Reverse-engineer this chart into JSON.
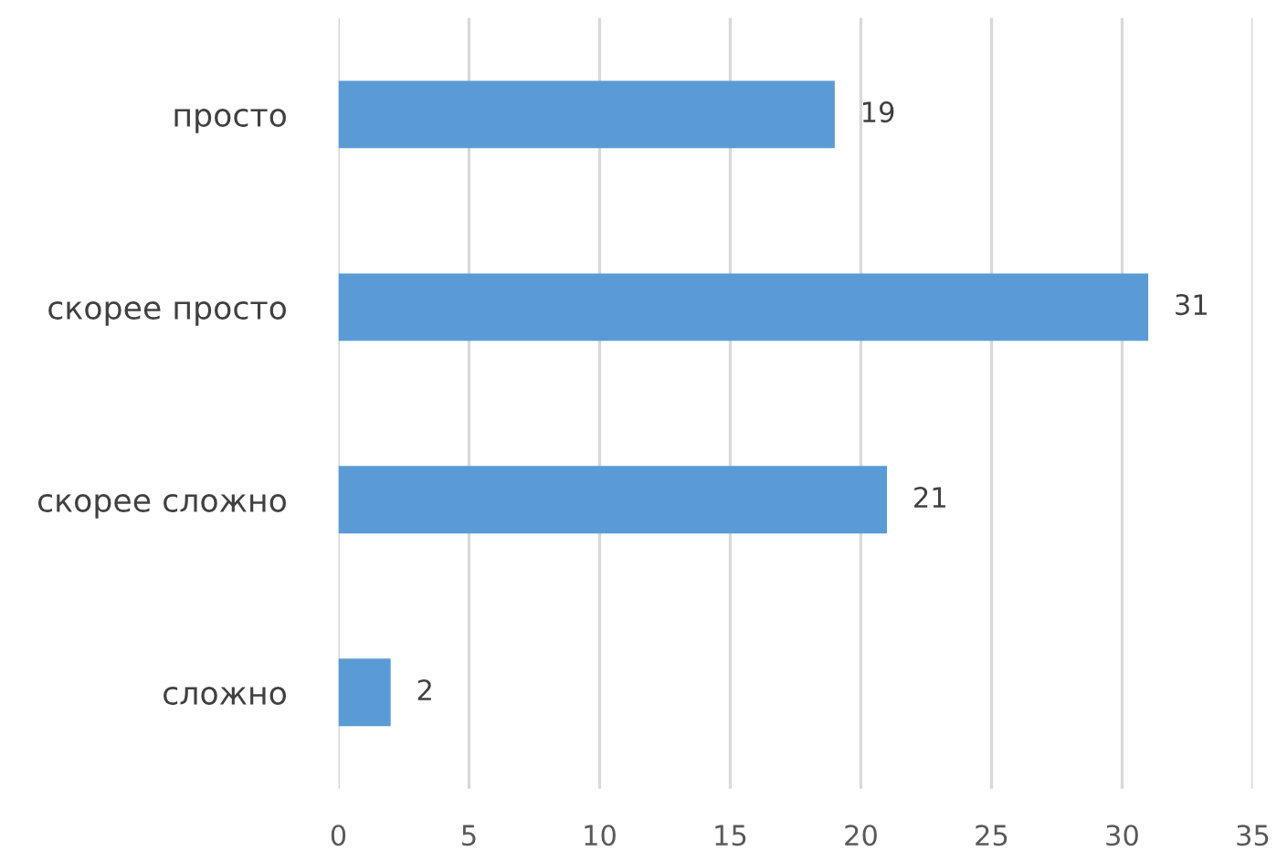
{
  "chart_data": {
    "type": "bar",
    "orientation": "horizontal",
    "categories": [
      "просто",
      "скорее просто",
      "скорее сложно",
      "сложно"
    ],
    "values": [
      19,
      31,
      21,
      2
    ],
    "color": "#5b9bd5",
    "xlim": [
      0,
      35
    ],
    "xticks": [
      0,
      5,
      10,
      15,
      20,
      25,
      30,
      35
    ],
    "grid": "x",
    "data_labels": true
  }
}
